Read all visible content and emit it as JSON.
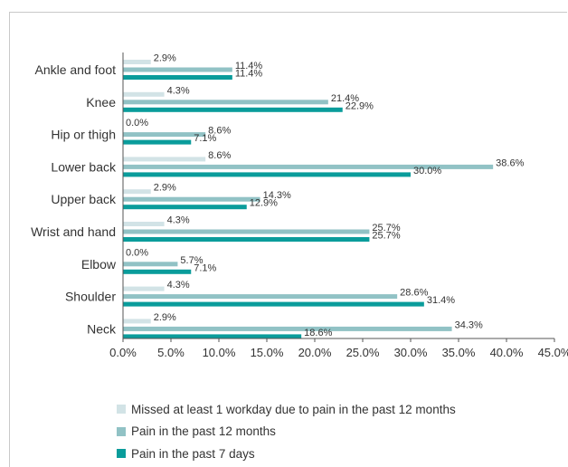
{
  "chart_data": {
    "type": "bar",
    "orientation": "horizontal",
    "categories": [
      "Ankle and foot",
      "Knee",
      "Hip or thigh",
      "Lower back",
      "Upper back",
      "Wrist and hand",
      "Elbow",
      "Shoulder",
      "Neck"
    ],
    "series": [
      {
        "name": "Missed at least 1 workday due to pain in the past 12 months",
        "color": "#d2e3e6",
        "values": [
          2.9,
          4.3,
          0.0,
          8.6,
          2.9,
          4.3,
          0.0,
          4.3,
          2.9
        ],
        "labels": [
          "2.9%",
          "4.3%",
          "0.0%",
          "8.6%",
          "2.9%",
          "4.3%",
          "0.0%",
          "4.3%",
          "2.9%"
        ]
      },
      {
        "name": "Pain in the past 12 months",
        "color": "#91c2c5",
        "values": [
          11.4,
          21.4,
          8.6,
          38.6,
          14.3,
          25.7,
          5.7,
          28.6,
          34.3
        ],
        "labels": [
          "11.4%",
          "21.4%",
          "8.6%",
          "38.6%",
          "14.3%",
          "25.7%",
          "5.7%",
          "28.6%",
          "34.3%"
        ]
      },
      {
        "name": "Pain in the past 7 days",
        "color": "#0a9c9b",
        "values": [
          11.4,
          22.9,
          7.1,
          30.0,
          12.9,
          25.7,
          7.1,
          31.4,
          18.6
        ],
        "labels": [
          "11.4%",
          "22.9%",
          "7.1%",
          "30.0%",
          "12.9%",
          "25.7%",
          "7.1%",
          "31.4%",
          "18.6%"
        ]
      }
    ],
    "xlim": [
      0,
      45
    ],
    "xticks": [
      "0.0%",
      "5.0%",
      "10.0%",
      "15.0%",
      "20.0%",
      "25.0%",
      "30.0%",
      "35.0%",
      "40.0%",
      "45.0%"
    ],
    "title": "",
    "xlabel": "",
    "ylabel": "",
    "grid": false,
    "legend_position": "bottom"
  }
}
